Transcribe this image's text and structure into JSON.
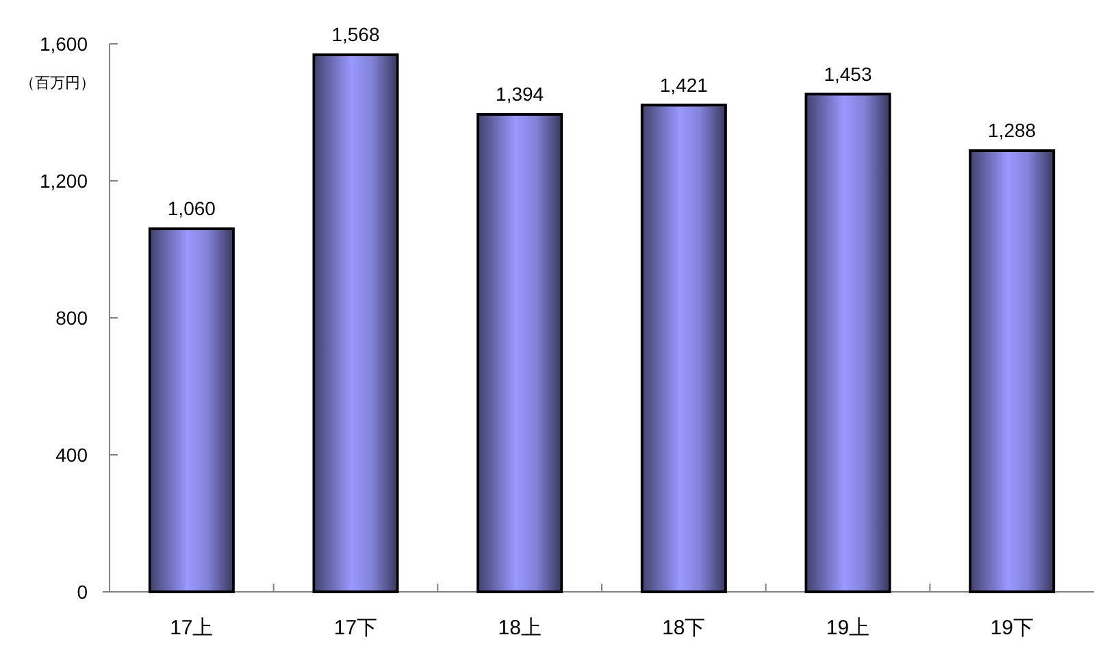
{
  "chart_data": {
    "type": "bar",
    "ylabel": "（百万円）",
    "categories": [
      "17上",
      "17下",
      "18上",
      "18下",
      "19上",
      "19下"
    ],
    "values": [
      1060,
      1568,
      1394,
      1421,
      1453,
      1288
    ],
    "color": "#9999ff",
    "ylim": [
      0,
      1600
    ],
    "yticks": [
      0,
      {
        "value": 400,
        "label": "400"
      },
      {
        "value": 800,
        "label": "800"
      },
      {
        "value": 1200,
        "label": "1,200"
      },
      {
        "value": 1600,
        "label": "1,600"
      }
    ],
    "value_labels": [
      "1,060",
      "1,568",
      "1,394",
      "1,421",
      "1,453",
      "1,288"
    ],
    "grid": false
  }
}
